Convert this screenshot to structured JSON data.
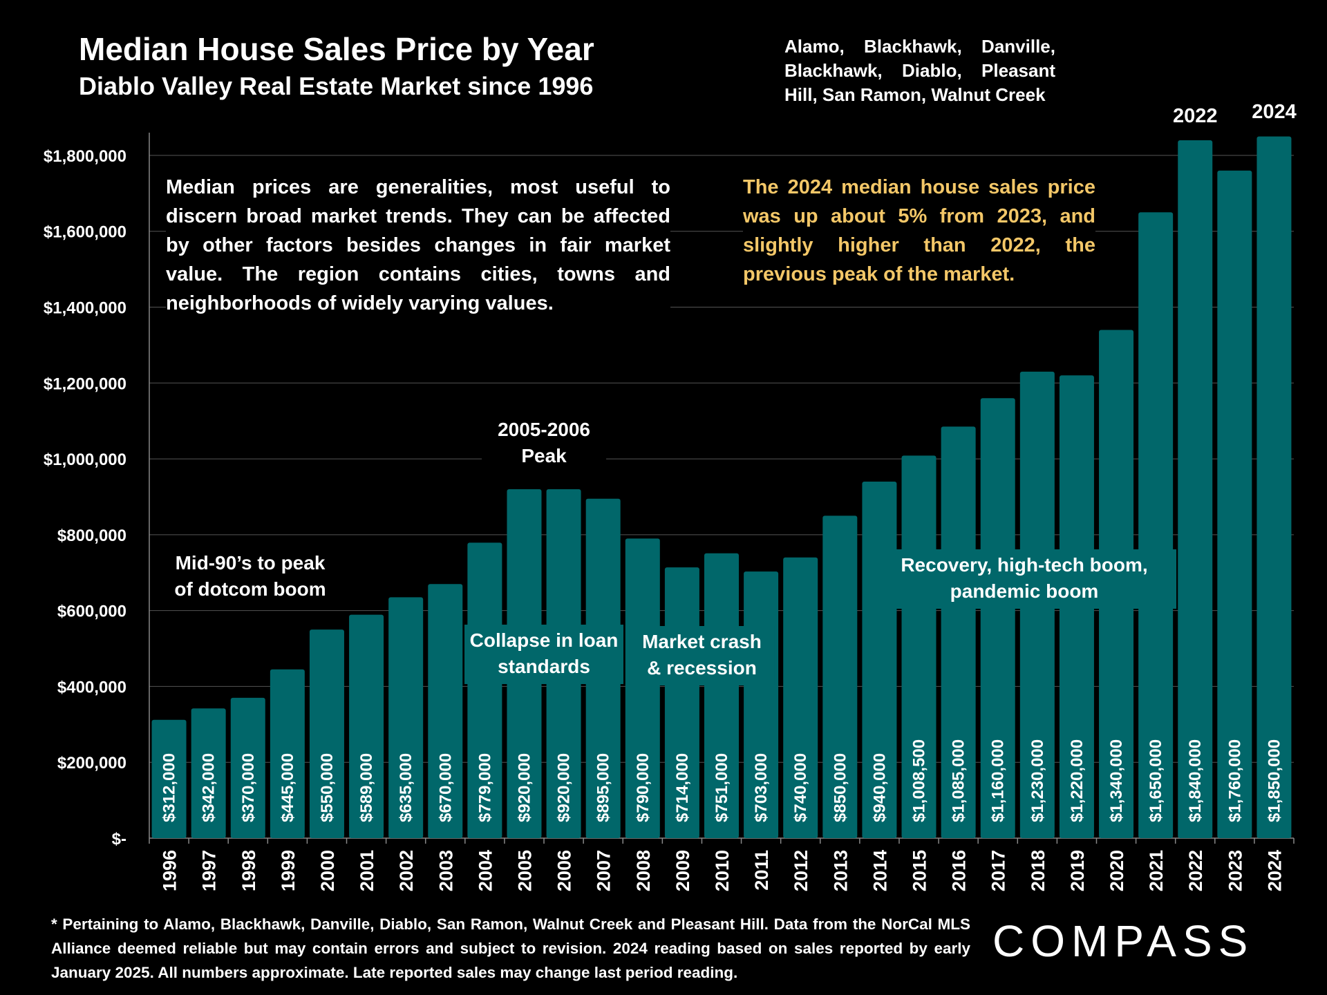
{
  "header": {
    "title": "Median House Sales Price by Year",
    "subtitle": "Diablo Valley Real Estate Market since 1996",
    "regions": "Alamo, Blackhawk, Danville, Blackhawk, Diablo, Pleasant Hill, San Ramon, Walnut Creek"
  },
  "notes": {
    "left": "Median prices are generalities, most useful to discern broad market trends. They can be affected by other factors besides changes in fair market value. The region contains cities, towns and neighborhoods of widely varying values.",
    "callout": "The 2024 median house sales price was up about 5% from 2023, and slightly higher than 2022, the previous peak of the market."
  },
  "footnote": "* Pertaining to Alamo, Blackhawk, Danville, Diablo, San Ramon, Walnut Creek and Pleasant Hill. Data from the NorCal MLS Alliance deemed reliable but may contain errors and subject to revision. 2024 reading based on sales reported by early January 2025. All numbers approximate. Late reported sales may change last period reading.",
  "brand": {
    "logo_text": "COMPASS"
  },
  "colors": {
    "bar": "#01676a",
    "background": "#000000",
    "callout": "#f3c768",
    "grid": "#555555"
  },
  "chart_data": {
    "type": "bar",
    "title": "Median House Sales Price by Year",
    "categories": [
      "1996",
      "1997",
      "1998",
      "1999",
      "2000",
      "2001",
      "2002",
      "2003",
      "2004",
      "2005",
      "2006",
      "2007",
      "2008",
      "2009",
      "2010",
      "2011",
      "2012",
      "2013",
      "2014",
      "2015",
      "2016",
      "2017",
      "2018",
      "2019",
      "2020",
      "2021",
      "2022",
      "2023",
      "2024"
    ],
    "values": [
      312000,
      342000,
      370000,
      445000,
      550000,
      589000,
      635000,
      670000,
      779000,
      920000,
      920000,
      895000,
      790000,
      714000,
      751000,
      703000,
      740000,
      850000,
      940000,
      1008500,
      1085000,
      1160000,
      1230000,
      1220000,
      1340000,
      1650000,
      1840000,
      1760000,
      1850000
    ],
    "data_labels": [
      "$312,000",
      "$342,000",
      "$370,000",
      "$445,000",
      "$550,000",
      "$589,000",
      "$635,000",
      "$670,000",
      "$779,000",
      "$920,000",
      "$920,000",
      "$895,000",
      "$790,000",
      "$714,000",
      "$751,000",
      "$703,000",
      "$740,000",
      "$850,000",
      "$940,000",
      "$1,008,500",
      "$1,085,000",
      "$1,160,000",
      "$1,230,000",
      "$1,220,000",
      "$1,340,000",
      "$1,650,000",
      "$1,840,000",
      "$1,760,000",
      "$1,850,000"
    ],
    "ylim": [
      0,
      1860000
    ],
    "y_ticks": [
      0,
      200000,
      400000,
      600000,
      800000,
      1000000,
      1200000,
      1400000,
      1600000,
      1800000
    ],
    "y_tick_labels": [
      "$-",
      "$200,000",
      "$400,000",
      "$600,000",
      "$800,000",
      "$1,000,000",
      "$1,200,000",
      "$1,400,000",
      "$1,600,000",
      "$1,800,000"
    ],
    "grid": true,
    "annotations": [
      {
        "lines": [
          "Mid-90’s to peak",
          "of dotcom boom"
        ],
        "year": "1998"
      },
      {
        "lines": [
          "2005-2006",
          "Peak"
        ],
        "year": "2005-2006"
      },
      {
        "lines": [
          "Collapse in loan",
          "standards"
        ],
        "year": "2005-2006"
      },
      {
        "lines": [
          "Market crash",
          "& recession"
        ],
        "year": "2009-2010"
      },
      {
        "lines": [
          "Recovery, high-tech boom,",
          "pandemic boom"
        ],
        "year": "2016-2019"
      }
    ],
    "top_labels": [
      "2022",
      "2024"
    ]
  }
}
